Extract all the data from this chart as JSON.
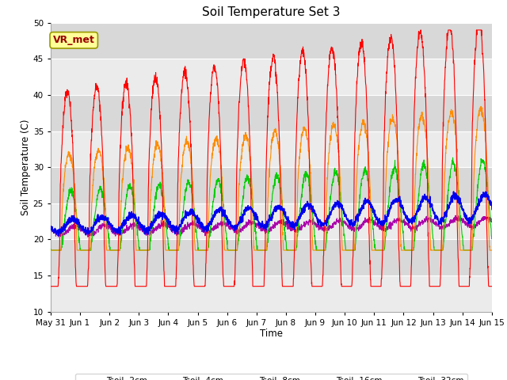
{
  "title": "Soil Temperature Set 3",
  "xlabel": "Time",
  "ylabel": "Soil Temperature (C)",
  "ylim": [
    10,
    50
  ],
  "yticks": [
    10,
    15,
    20,
    25,
    30,
    35,
    40,
    45,
    50
  ],
  "colors": {
    "Tsoil -2cm": "#ff0000",
    "Tsoil -4cm": "#ff8c00",
    "Tsoil -8cm": "#00cc00",
    "Tsoil -16cm": "#0000ee",
    "Tsoil -32cm": "#aa00aa"
  },
  "annotation_text": "VR_met",
  "annotation_color": "#990000",
  "annotation_bg": "#ffff99",
  "annotation_border": "#999900",
  "plot_bg_light": "#ebebeb",
  "plot_bg_dark": "#d8d8d8",
  "grid_color": "#ffffff",
  "figsize": [
    6.4,
    4.8
  ],
  "dpi": 100
}
